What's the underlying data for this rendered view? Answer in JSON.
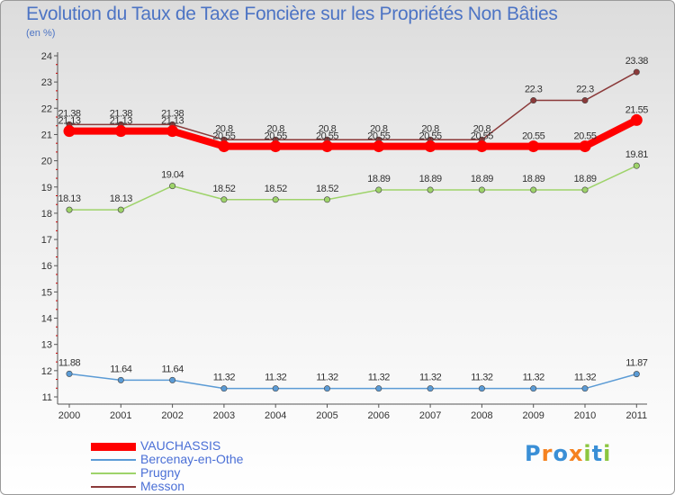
{
  "chart_data": {
    "type": "line",
    "title": "Evolution du Taux de Taxe Foncière sur les Propriétés Non Bâties",
    "ylabel": "(en %)",
    "xlabel": "",
    "categories": [
      "2000",
      "2001",
      "2002",
      "2003",
      "2004",
      "2005",
      "2006",
      "2007",
      "2008",
      "2009",
      "2010",
      "2011"
    ],
    "ylim": [
      11,
      24
    ],
    "yticks": [
      11,
      12,
      13,
      14,
      15,
      16,
      17,
      18,
      19,
      20,
      21,
      22,
      23,
      24
    ],
    "grid": false,
    "legend_position": "bottom-left",
    "series": [
      {
        "name": "VAUCHASSIS",
        "color": "#ff0000",
        "values": [
          21.13,
          21.13,
          21.13,
          20.55,
          20.55,
          20.55,
          20.55,
          20.55,
          20.55,
          20.55,
          20.55,
          21.55
        ],
        "labels": [
          "21.13",
          "21.13",
          "21.13",
          "20.55",
          "20.55",
          "20.55",
          "20.55",
          "20.55",
          "20.55",
          "20.55",
          "20.55",
          "21.55"
        ]
      },
      {
        "name": "Bercenay-en-Othe",
        "color": "#5b9bd5",
        "values": [
          11.88,
          11.64,
          11.64,
          11.32,
          11.32,
          11.32,
          11.32,
          11.32,
          11.32,
          11.32,
          11.32,
          11.87
        ],
        "labels": [
          "11.88",
          "11.64",
          "11.64",
          "11.32",
          "11.32",
          "11.32",
          "11.32",
          "11.32",
          "11.32",
          "11.32",
          "11.32",
          "11.87"
        ]
      },
      {
        "name": "Prugny",
        "color": "#9ed36a",
        "values": [
          18.13,
          18.13,
          19.04,
          18.52,
          18.52,
          18.52,
          18.89,
          18.89,
          18.89,
          18.89,
          18.89,
          19.81
        ],
        "labels": [
          "18.13",
          "18.13",
          "19.04",
          "18.52",
          "18.52",
          "18.52",
          "18.89",
          "18.89",
          "18.89",
          "18.89",
          "18.89",
          "19.81"
        ]
      },
      {
        "name": "Messon",
        "color": "#8b3a3a",
        "values": [
          21.38,
          21.38,
          21.38,
          20.8,
          20.8,
          20.8,
          20.8,
          20.8,
          20.8,
          22.3,
          22.3,
          23.38
        ],
        "labels": [
          "21.38",
          "21.38",
          "21.38",
          "20.8",
          "20.8",
          "20.8",
          "20.8",
          "20.8",
          "20.8",
          "22.3",
          "22.3",
          "23.38"
        ]
      }
    ]
  },
  "logo": {
    "text": "Proxiti",
    "letter_colors": [
      "#3a8fd6",
      "#f58220",
      "#3a8fd6",
      "#f58220",
      "#8cc63f",
      "#3a8fd6",
      "#8cc63f"
    ]
  }
}
